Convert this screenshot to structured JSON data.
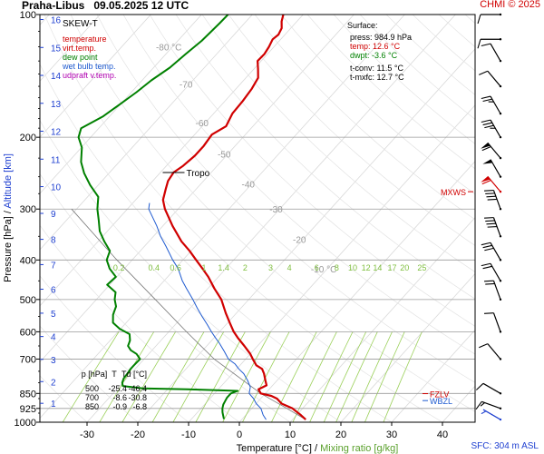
{
  "header": {
    "station": "Praha-Libus",
    "datetime": "09.05.2025 12 UTC",
    "credit": "CHMI © 2025"
  },
  "chart_data": {
    "type": "skew-t",
    "pressure_ticks": [
      100,
      200,
      300,
      400,
      500,
      600,
      700,
      850,
      925,
      1000
    ],
    "altitude_ticks_km": [
      1,
      2,
      3,
      4,
      5,
      6,
      7,
      8,
      9,
      10,
      11,
      12,
      13,
      14,
      15,
      16
    ],
    "temperature_ticks": [
      -30,
      -20,
      -10,
      0,
      10,
      20,
      30,
      40
    ],
    "isotherm_labels": [
      "-80 °C",
      "-70",
      "-60",
      "-50",
      "-40",
      "-30",
      "-20",
      "-10 °C"
    ],
    "mixing_ratio_labels": [
      "0.2",
      "0.4",
      "0.6",
      "1",
      "1.4",
      "2",
      "3",
      "4",
      "6",
      "8",
      "10",
      "12",
      "14",
      "17",
      "20",
      "25"
    ],
    "axis_labels": {
      "pressure": "Pressure [hPa]",
      "altitude": "Altitude [km]",
      "temperature": "Temperature [°C]",
      "separator": "/",
      "mixing_ratio": "Mixing ratio [g/kg]"
    },
    "legend_title": "SKEW-T",
    "legend": [
      {
        "label": "temperature",
        "color": "#d00000"
      },
      {
        "label": "virt.temp.",
        "color": "#d00000"
      },
      {
        "label": "dew point",
        "color": "#008000"
      },
      {
        "label": "wet bulb temp.",
        "color": "#1e5ad0"
      },
      {
        "label": "udpraft v.temp.",
        "color": "#b000b0"
      }
    ],
    "surface": {
      "title": "Surface:",
      "rows": [
        {
          "label": "press:",
          "value": "984.9 hPa",
          "color": "#000000"
        },
        {
          "label": "temp:",
          "value": "12.6 °C",
          "color": "#d00000"
        },
        {
          "label": "dwpt:",
          "value": "-3.6 °C",
          "color": "#008000"
        }
      ],
      "tconv_label": "t-conv:",
      "tconv_value": "11.5 °C",
      "tmxfc_label": "t-mxfc:",
      "tmxfc_value": "12.7 °C"
    },
    "tropopause": {
      "label": "Tropo",
      "pressure": 244
    },
    "levels_table": {
      "headers": [
        "p [hPa]",
        "T",
        "Td [°C]"
      ],
      "rows": [
        [
          "500",
          "-25.4",
          "-46.4"
        ],
        [
          "700",
          "-8.6",
          "-30.8"
        ],
        [
          "850",
          "-0.9",
          "-6.8"
        ]
      ]
    },
    "markers": [
      {
        "label": "MXWS",
        "pressure": 272,
        "color": "#d00000"
      },
      {
        "label": "FZLV",
        "pressure": 851,
        "color": "#d00000"
      },
      {
        "label": "WBZL",
        "pressure": 885,
        "color": "#1e5ad0"
      }
    ],
    "temperature_profile": [
      [
        985,
        12.6
      ],
      [
        960,
        10.8
      ],
      [
        940,
        9.2
      ],
      [
        925,
        8.0
      ],
      [
        900,
        5.0
      ],
      [
        875,
        3.2
      ],
      [
        862,
        1.6
      ],
      [
        850,
        -0.9
      ],
      [
        830,
        -2.1
      ],
      [
        812,
        -1.2
      ],
      [
        790,
        -2.3
      ],
      [
        760,
        -3.8
      ],
      [
        740,
        -5.0
      ],
      [
        725,
        -6.8
      ],
      [
        700,
        -8.6
      ],
      [
        680,
        -10.0
      ],
      [
        650,
        -12.6
      ],
      [
        620,
        -15.4
      ],
      [
        600,
        -17.2
      ],
      [
        570,
        -19.6
      ],
      [
        540,
        -22.1
      ],
      [
        500,
        -25.4
      ],
      [
        470,
        -28.7
      ],
      [
        440,
        -32.0
      ],
      [
        420,
        -34.6
      ],
      [
        400,
        -37.4
      ],
      [
        380,
        -40.3
      ],
      [
        360,
        -43.6
      ],
      [
        330,
        -48.1
      ],
      [
        300,
        -52.6
      ],
      [
        285,
        -54.6
      ],
      [
        268,
        -56.0
      ],
      [
        256,
        -57.0
      ],
      [
        244,
        -57.4
      ],
      [
        235,
        -56.7
      ],
      [
        222,
        -56.2
      ],
      [
        210,
        -56.2
      ],
      [
        197,
        -56.6
      ],
      [
        188,
        -55.3
      ],
      [
        175,
        -56.3
      ],
      [
        163,
        -56.5
      ],
      [
        152,
        -56.9
      ],
      [
        143,
        -57.6
      ],
      [
        136,
        -59.2
      ],
      [
        130,
        -60.7
      ],
      [
        125,
        -60.6
      ],
      [
        120,
        -61.0
      ],
      [
        115,
        -61.6
      ],
      [
        112,
        -61.3
      ],
      [
        108,
        -61.8
      ],
      [
        104,
        -63.0
      ],
      [
        100,
        -63.9
      ]
    ],
    "dewpoint_profile": [
      [
        982,
        -3.6
      ],
      [
        960,
        -4.5
      ],
      [
        945,
        -5.1
      ],
      [
        925,
        -5.8
      ],
      [
        905,
        -6.3
      ],
      [
        885,
        -6.6
      ],
      [
        870,
        -6.8
      ],
      [
        850,
        -6.8
      ],
      [
        838,
        -5.9
      ],
      [
        830,
        -16.0
      ],
      [
        826,
        -25.0
      ],
      [
        815,
        -29.4
      ],
      [
        800,
        -30.1
      ],
      [
        780,
        -30.6
      ],
      [
        760,
        -30.7
      ],
      [
        742,
        -30.9
      ],
      [
        725,
        -30.9
      ],
      [
        700,
        -30.8
      ],
      [
        680,
        -32.4
      ],
      [
        666,
        -34.2
      ],
      [
        650,
        -35.5
      ],
      [
        630,
        -36.1
      ],
      [
        608,
        -37.3
      ],
      [
        590,
        -40.2
      ],
      [
        570,
        -42.6
      ],
      [
        545,
        -44.0
      ],
      [
        520,
        -44.9
      ],
      [
        500,
        -46.4
      ],
      [
        480,
        -47.5
      ],
      [
        460,
        -50.5
      ],
      [
        440,
        -50.2
      ],
      [
        420,
        -52.9
      ],
      [
        400,
        -55.0
      ],
      [
        380,
        -56.0
      ],
      [
        360,
        -58.8
      ],
      [
        340,
        -61.5
      ],
      [
        320,
        -63.6
      ],
      [
        300,
        -65.9
      ],
      [
        280,
        -67.9
      ],
      [
        262,
        -71.6
      ],
      [
        245,
        -74.9
      ],
      [
        230,
        -77.5
      ],
      [
        212,
        -79.9
      ],
      [
        200,
        -82.4
      ],
      [
        190,
        -83.5
      ],
      [
        178,
        -81.3
      ],
      [
        166,
        -80.1
      ],
      [
        155,
        -79.0
      ],
      [
        145,
        -78.2
      ],
      [
        135,
        -76.8
      ],
      [
        125,
        -76.1
      ],
      [
        116,
        -75.3
      ],
      [
        110,
        -75.1
      ],
      [
        105,
        -74.9
      ],
      [
        100,
        -74.8
      ]
    ],
    "wetbulb_profile": [
      [
        985,
        4.8
      ],
      [
        960,
        3.4
      ],
      [
        925,
        1.8
      ],
      [
        900,
        0.0
      ],
      [
        875,
        -1.4
      ],
      [
        850,
        -3.2
      ],
      [
        820,
        -4.1
      ],
      [
        790,
        -5.8
      ],
      [
        760,
        -7.8
      ],
      [
        740,
        -9.6
      ],
      [
        720,
        -11.2
      ],
      [
        700,
        -13.4
      ],
      [
        670,
        -15.6
      ],
      [
        640,
        -18.0
      ],
      [
        620,
        -19.8
      ],
      [
        600,
        -21.6
      ],
      [
        575,
        -23.8
      ],
      [
        550,
        -26.2
      ],
      [
        525,
        -28.6
      ],
      [
        500,
        -31.0
      ],
      [
        470,
        -34.2
      ],
      [
        450,
        -36.4
      ],
      [
        420,
        -39.4
      ],
      [
        400,
        -42.0
      ],
      [
        370,
        -45.8
      ],
      [
        350,
        -48.6
      ],
      [
        330,
        -51.2
      ],
      [
        300,
        -55.8
      ],
      [
        290,
        -56.7
      ]
    ],
    "parcel_profile": [
      [
        985,
        12.6
      ],
      [
        925,
        6.9
      ],
      [
        850,
        -0.9
      ],
      [
        700,
        -16.2
      ],
      [
        600,
        -26.5
      ],
      [
        500,
        -38.4
      ],
      [
        400,
        -53.0
      ],
      [
        300,
        -71.0
      ]
    ],
    "wind_barbs": [
      {
        "pressure": 985,
        "dir": 300,
        "speed": 6,
        "color": "#1e3fd0"
      },
      {
        "pressure": 925,
        "dir": 290,
        "speed": 15,
        "color": "#000000"
      },
      {
        "pressure": 850,
        "dir": 300,
        "speed": 10,
        "color": "#000000"
      },
      {
        "pressure": 700,
        "dir": 320,
        "speed": 12,
        "color": "#000000"
      },
      {
        "pressure": 600,
        "dir": 340,
        "speed": 12,
        "color": "#000000"
      },
      {
        "pressure": 500,
        "dir": 340,
        "speed": 20,
        "color": "#000000"
      },
      {
        "pressure": 450,
        "dir": 330,
        "speed": 20,
        "color": "#000000"
      },
      {
        "pressure": 400,
        "dir": 330,
        "speed": 30,
        "color": "#000000"
      },
      {
        "pressure": 350,
        "dir": 340,
        "speed": 40,
        "color": "#000000"
      },
      {
        "pressure": 300,
        "dir": 340,
        "speed": 40,
        "color": "#000000"
      },
      {
        "pressure": 250,
        "dir": 330,
        "speed": 50,
        "color": "#000000"
      },
      {
        "pressure": 272,
        "dir": 320,
        "speed": 60,
        "color": "#d00000"
      },
      {
        "pressure": 225,
        "dir": 320,
        "speed": 60,
        "color": "#000000"
      },
      {
        "pressure": 200,
        "dir": 330,
        "speed": 35,
        "color": "#000000"
      },
      {
        "pressure": 175,
        "dir": 330,
        "speed": 25,
        "color": "#000000"
      },
      {
        "pressure": 150,
        "dir": 320,
        "speed": 10,
        "color": "#000000"
      },
      {
        "pressure": 130,
        "dir": 330,
        "speed": 10,
        "color": "#000000"
      },
      {
        "pressure": 115,
        "dir": 270,
        "speed": 10,
        "color": "#000000"
      },
      {
        "pressure": 100,
        "dir": 270,
        "speed": 10,
        "color": "#000000"
      }
    ],
    "surface_elevation_note": "SFC: 304 m ASL",
    "colors": {
      "temperature": "#d00000",
      "dewpoint": "#008000",
      "wetbulb": "#1e5ad0",
      "parcel": "#777777",
      "mixing_ratio": "#9bd05a",
      "isobars": "#9a9a9a",
      "isotherms": "#d9d9d9",
      "altitude_axis": "#1e3fd0"
    },
    "grid": true,
    "pressure_scale": "log"
  }
}
